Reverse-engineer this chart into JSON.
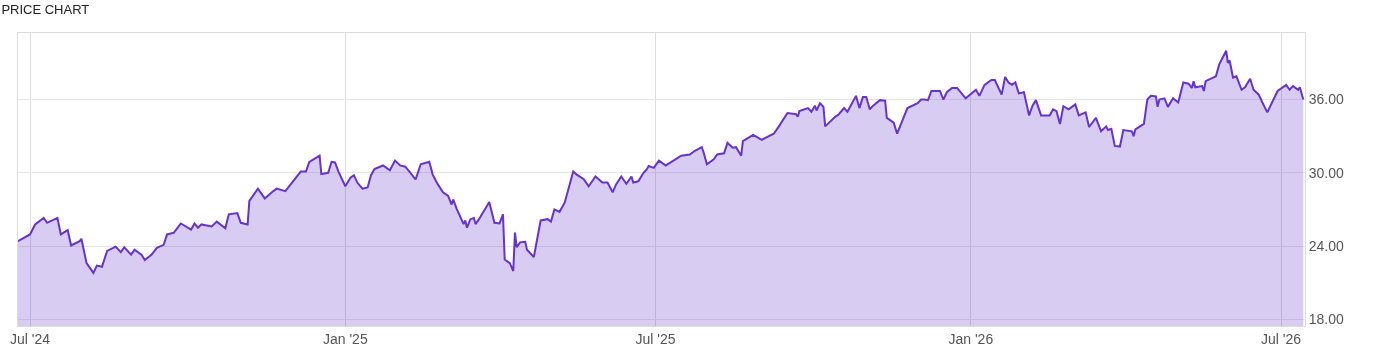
{
  "chart_data": {
    "type": "area",
    "title": "PRICE CHART",
    "x": [
      "2024-06-24",
      "2024-07-01",
      "2024-07-04",
      "2024-07-09",
      "2024-07-11",
      "2024-07-17",
      "2024-07-19",
      "2024-07-23",
      "2024-07-25",
      "2024-07-30",
      "2024-07-31",
      "2024-08-03",
      "2024-08-07",
      "2024-08-09",
      "2024-08-12",
      "2024-08-15",
      "2024-08-20",
      "2024-08-23",
      "2024-08-25",
      "2024-08-29",
      "2024-08-31",
      "2024-09-04",
      "2024-09-06",
      "2024-09-10",
      "2024-09-13",
      "2024-09-17",
      "2024-09-19",
      "2024-09-23",
      "2024-09-27",
      "2024-10-03",
      "2024-10-05",
      "2024-10-07",
      "2024-10-09",
      "2024-10-15",
      "2024-10-18",
      "2024-10-23",
      "2024-10-25",
      "2024-10-30",
      "2024-11-01",
      "2024-11-05",
      "2024-11-06",
      "2024-11-11",
      "2024-11-15",
      "2024-11-20",
      "2024-11-22",
      "2024-11-27",
      "2024-12-06",
      "2024-12-09",
      "2024-12-11",
      "2024-12-17",
      "2024-12-18",
      "2024-12-22",
      "2024-12-24",
      "2024-12-26",
      "2024-12-28",
      "2025-01-01",
      "2025-01-04",
      "2025-01-06",
      "2025-01-08",
      "2025-01-11",
      "2025-01-14",
      "2025-01-16",
      "2025-01-18",
      "2025-01-23",
      "2025-01-27",
      "2025-01-30",
      "2025-02-02",
      "2025-02-05",
      "2025-02-08",
      "2025-02-11",
      "2025-02-14",
      "2025-02-19",
      "2025-02-21",
      "2025-02-24",
      "2025-02-27",
      "2025-03-02",
      "2025-03-04",
      "2025-03-05",
      "2025-03-07",
      "2025-03-11",
      "2025-03-12",
      "2025-03-13",
      "2025-03-15",
      "2025-03-17",
      "2025-03-18",
      "2025-03-20",
      "2025-03-26",
      "2025-03-29",
      "2025-04-01",
      "2025-04-03",
      "2025-04-04",
      "2025-04-07",
      "2025-04-09",
      "2025-04-10",
      "2025-04-11",
      "2025-04-13",
      "2025-04-16",
      "2025-04-17",
      "2025-04-21",
      "2025-04-25",
      "2025-04-29",
      "2025-05-01",
      "2025-05-03",
      "2025-05-06",
      "2025-05-09",
      "2025-05-14",
      "2025-05-16",
      "2025-05-20",
      "2025-05-23",
      "2025-05-27",
      "2025-05-31",
      "2025-06-03",
      "2025-06-06",
      "2025-06-08",
      "2025-06-11",
      "2025-06-14",
      "2025-06-17",
      "2025-06-18",
      "2025-06-21",
      "2025-06-24",
      "2025-06-26",
      "2025-06-27",
      "2025-06-30",
      "2025-07-03",
      "2025-07-07",
      "2025-07-11",
      "2025-07-16",
      "2025-07-21",
      "2025-07-24",
      "2025-07-28",
      "2025-07-29",
      "2025-07-31",
      "2025-08-04",
      "2025-08-06",
      "2025-08-10",
      "2025-08-12",
      "2025-08-15",
      "2025-08-17",
      "2025-08-20",
      "2025-08-21",
      "2025-08-27",
      "2025-09-01",
      "2025-09-08",
      "2025-09-11",
      "2025-09-16",
      "2025-09-21",
      "2025-09-22",
      "2025-09-23",
      "2025-09-28",
      "2025-09-30",
      "2025-10-02",
      "2025-10-03",
      "2025-10-05",
      "2025-10-07",
      "2025-10-08",
      "2025-10-14",
      "2025-10-16",
      "2025-10-19",
      "2025-10-21",
      "2025-10-26",
      "2025-10-28",
      "2025-10-30",
      "2025-11-01",
      "2025-11-03",
      "2025-11-05",
      "2025-11-09",
      "2025-11-12",
      "2025-11-13",
      "2025-11-17",
      "2025-11-19",
      "2025-11-25",
      "2025-12-01",
      "2025-12-03",
      "2025-12-05",
      "2025-12-07",
      "2025-12-09",
      "2025-12-14",
      "2025-12-16",
      "2025-12-18",
      "2025-12-21",
      "2025-12-24",
      "2025-12-29",
      "2026-01-04",
      "2026-01-06",
      "2026-01-09",
      "2026-01-13",
      "2026-01-15",
      "2026-01-19",
      "2026-01-21",
      "2026-01-23",
      "2026-01-25",
      "2026-01-27",
      "2026-01-29",
      "2026-02-01",
      "2026-02-04",
      "2026-02-06",
      "2026-02-08",
      "2026-02-11",
      "2026-02-16",
      "2026-02-18",
      "2026-02-20",
      "2026-02-22",
      "2026-02-24",
      "2026-02-27",
      "2026-03-01",
      "2026-03-03",
      "2026-03-05",
      "2026-03-09",
      "2026-03-11",
      "2026-03-15",
      "2026-03-18",
      "2026-03-21",
      "2026-03-22",
      "2026-03-24",
      "2026-03-26",
      "2026-03-29",
      "2026-03-31",
      "2026-04-05",
      "2026-04-06",
      "2026-04-07",
      "2026-04-12",
      "2026-04-14",
      "2026-04-16",
      "2026-04-19",
      "2026-04-20",
      "2026-04-21",
      "2026-04-24",
      "2026-04-26",
      "2026-04-29",
      "2026-05-02",
      "2026-05-05",
      "2026-05-08",
      "2026-05-10",
      "2026-05-11",
      "2026-05-12",
      "2026-05-16",
      "2026-05-17",
      "2026-05-18",
      "2026-05-24",
      "2026-05-26",
      "2026-05-30",
      "2026-05-31",
      "2026-06-01",
      "2026-06-03",
      "2026-06-05",
      "2026-06-08",
      "2026-06-10",
      "2026-06-13",
      "2026-06-15",
      "2026-06-18",
      "2026-06-20",
      "2026-06-23",
      "2026-06-29",
      "2026-07-04",
      "2026-07-06",
      "2026-07-08",
      "2026-07-11",
      "2026-07-12",
      "2026-07-14"
    ],
    "series": [
      {
        "color": "#6633cc",
        "values": [
          24.4,
          24.95,
          25.77,
          26.3,
          25.9,
          26.3,
          24.95,
          25.3,
          24.05,
          24.4,
          24.6,
          22.6,
          21.8,
          22.4,
          22.3,
          23.6,
          23.95,
          23.5,
          23.9,
          23.3,
          23.7,
          23.3,
          22.85,
          23.3,
          23.85,
          24.1,
          24.95,
          25.1,
          25.85,
          25.35,
          25.85,
          25.5,
          25.77,
          25.6,
          26.0,
          25.45,
          26.6,
          26.7,
          25.9,
          25.77,
          27.7,
          28.7,
          27.9,
          28.5,
          28.7,
          28.5,
          30.1,
          30.1,
          30.9,
          31.4,
          29.9,
          30.0,
          30.9,
          30.85,
          30.1,
          28.9,
          29.6,
          29.8,
          29.2,
          28.7,
          28.8,
          29.8,
          30.3,
          30.6,
          30.2,
          31.0,
          30.6,
          30.5,
          30.0,
          29.45,
          30.7,
          30.9,
          29.85,
          29.05,
          28.4,
          28.1,
          27.4,
          27.8,
          27.05,
          25.8,
          26.1,
          25.5,
          26.2,
          26.3,
          25.8,
          26.2,
          27.6,
          25.9,
          25.85,
          26.6,
          22.9,
          22.6,
          21.95,
          25.1,
          23.9,
          24.3,
          24.35,
          23.7,
          23.1,
          26.1,
          26.2,
          26.0,
          27.0,
          26.8,
          27.55,
          30.1,
          29.85,
          29.5,
          28.9,
          29.7,
          29.2,
          29.2,
          28.4,
          29.05,
          29.7,
          29.1,
          29.7,
          29.2,
          29.3,
          30.0,
          30.3,
          30.55,
          30.4,
          31.0,
          30.6,
          30.95,
          31.4,
          31.5,
          31.8,
          32.1,
          31.7,
          30.7,
          31.1,
          31.5,
          31.6,
          32.45,
          32.05,
          32.1,
          31.4,
          32.6,
          33.1,
          32.7,
          33.2,
          33.8,
          34.9,
          34.8,
          34.6,
          35.05,
          35.3,
          35.0,
          35.5,
          35.1,
          35.7,
          35.4,
          33.8,
          34.6,
          34.8,
          35.3,
          35.0,
          36.3,
          35.3,
          36.2,
          36.2,
          35.2,
          35.5,
          35.95,
          35.9,
          34.5,
          34.1,
          33.2,
          35.3,
          35.7,
          36.0,
          36.0,
          35.95,
          36.7,
          36.7,
          36.0,
          36.6,
          36.95,
          36.95,
          36.1,
          36.8,
          36.3,
          37.2,
          37.6,
          37.6,
          36.4,
          37.85,
          37.4,
          37.2,
          37.4,
          36.5,
          36.6,
          34.7,
          35.5,
          35.95,
          34.7,
          34.7,
          35.2,
          35.05,
          34.0,
          35.45,
          35.2,
          35.4,
          35.6,
          34.7,
          34.95,
          33.75,
          34.5,
          33.4,
          33.8,
          33.5,
          33.6,
          32.2,
          32.15,
          33.5,
          33.4,
          33.0,
          33.55,
          34.0,
          36.0,
          36.3,
          36.25,
          35.4,
          36.0,
          36.1,
          35.4,
          36.1,
          35.75,
          37.4,
          37.3,
          36.95,
          37.5,
          37.0,
          37.1,
          36.7,
          37.5,
          37.9,
          38.9,
          40.0,
          39.0,
          39.2,
          37.8,
          37.9,
          36.8,
          37.0,
          37.7,
          36.8,
          36.4,
          35.8,
          34.95,
          36.7,
          37.2,
          36.8,
          37.1,
          36.8,
          37.0,
          36.0
        ]
      }
    ],
    "xlim": [
      "2024-06-24",
      "2026-07-15"
    ],
    "xticks": [
      {
        "value": "2024-07-01",
        "label": "Jul '24"
      },
      {
        "value": "2025-01-01",
        "label": "Jan '25"
      },
      {
        "value": "2025-07-01",
        "label": "Jul '25"
      },
      {
        "value": "2026-01-01",
        "label": "Jan '26"
      },
      {
        "value": "2026-07-01",
        "label": "Jul '26"
      }
    ],
    "ylim": [
      17.45,
      41.45
    ],
    "yticks": [
      {
        "value": 18,
        "label": "18.00"
      },
      {
        "value": 24,
        "label": "24.00"
      },
      {
        "value": 30,
        "label": "30.00"
      },
      {
        "value": 36,
        "label": "36.00"
      }
    ],
    "grid": true
  }
}
